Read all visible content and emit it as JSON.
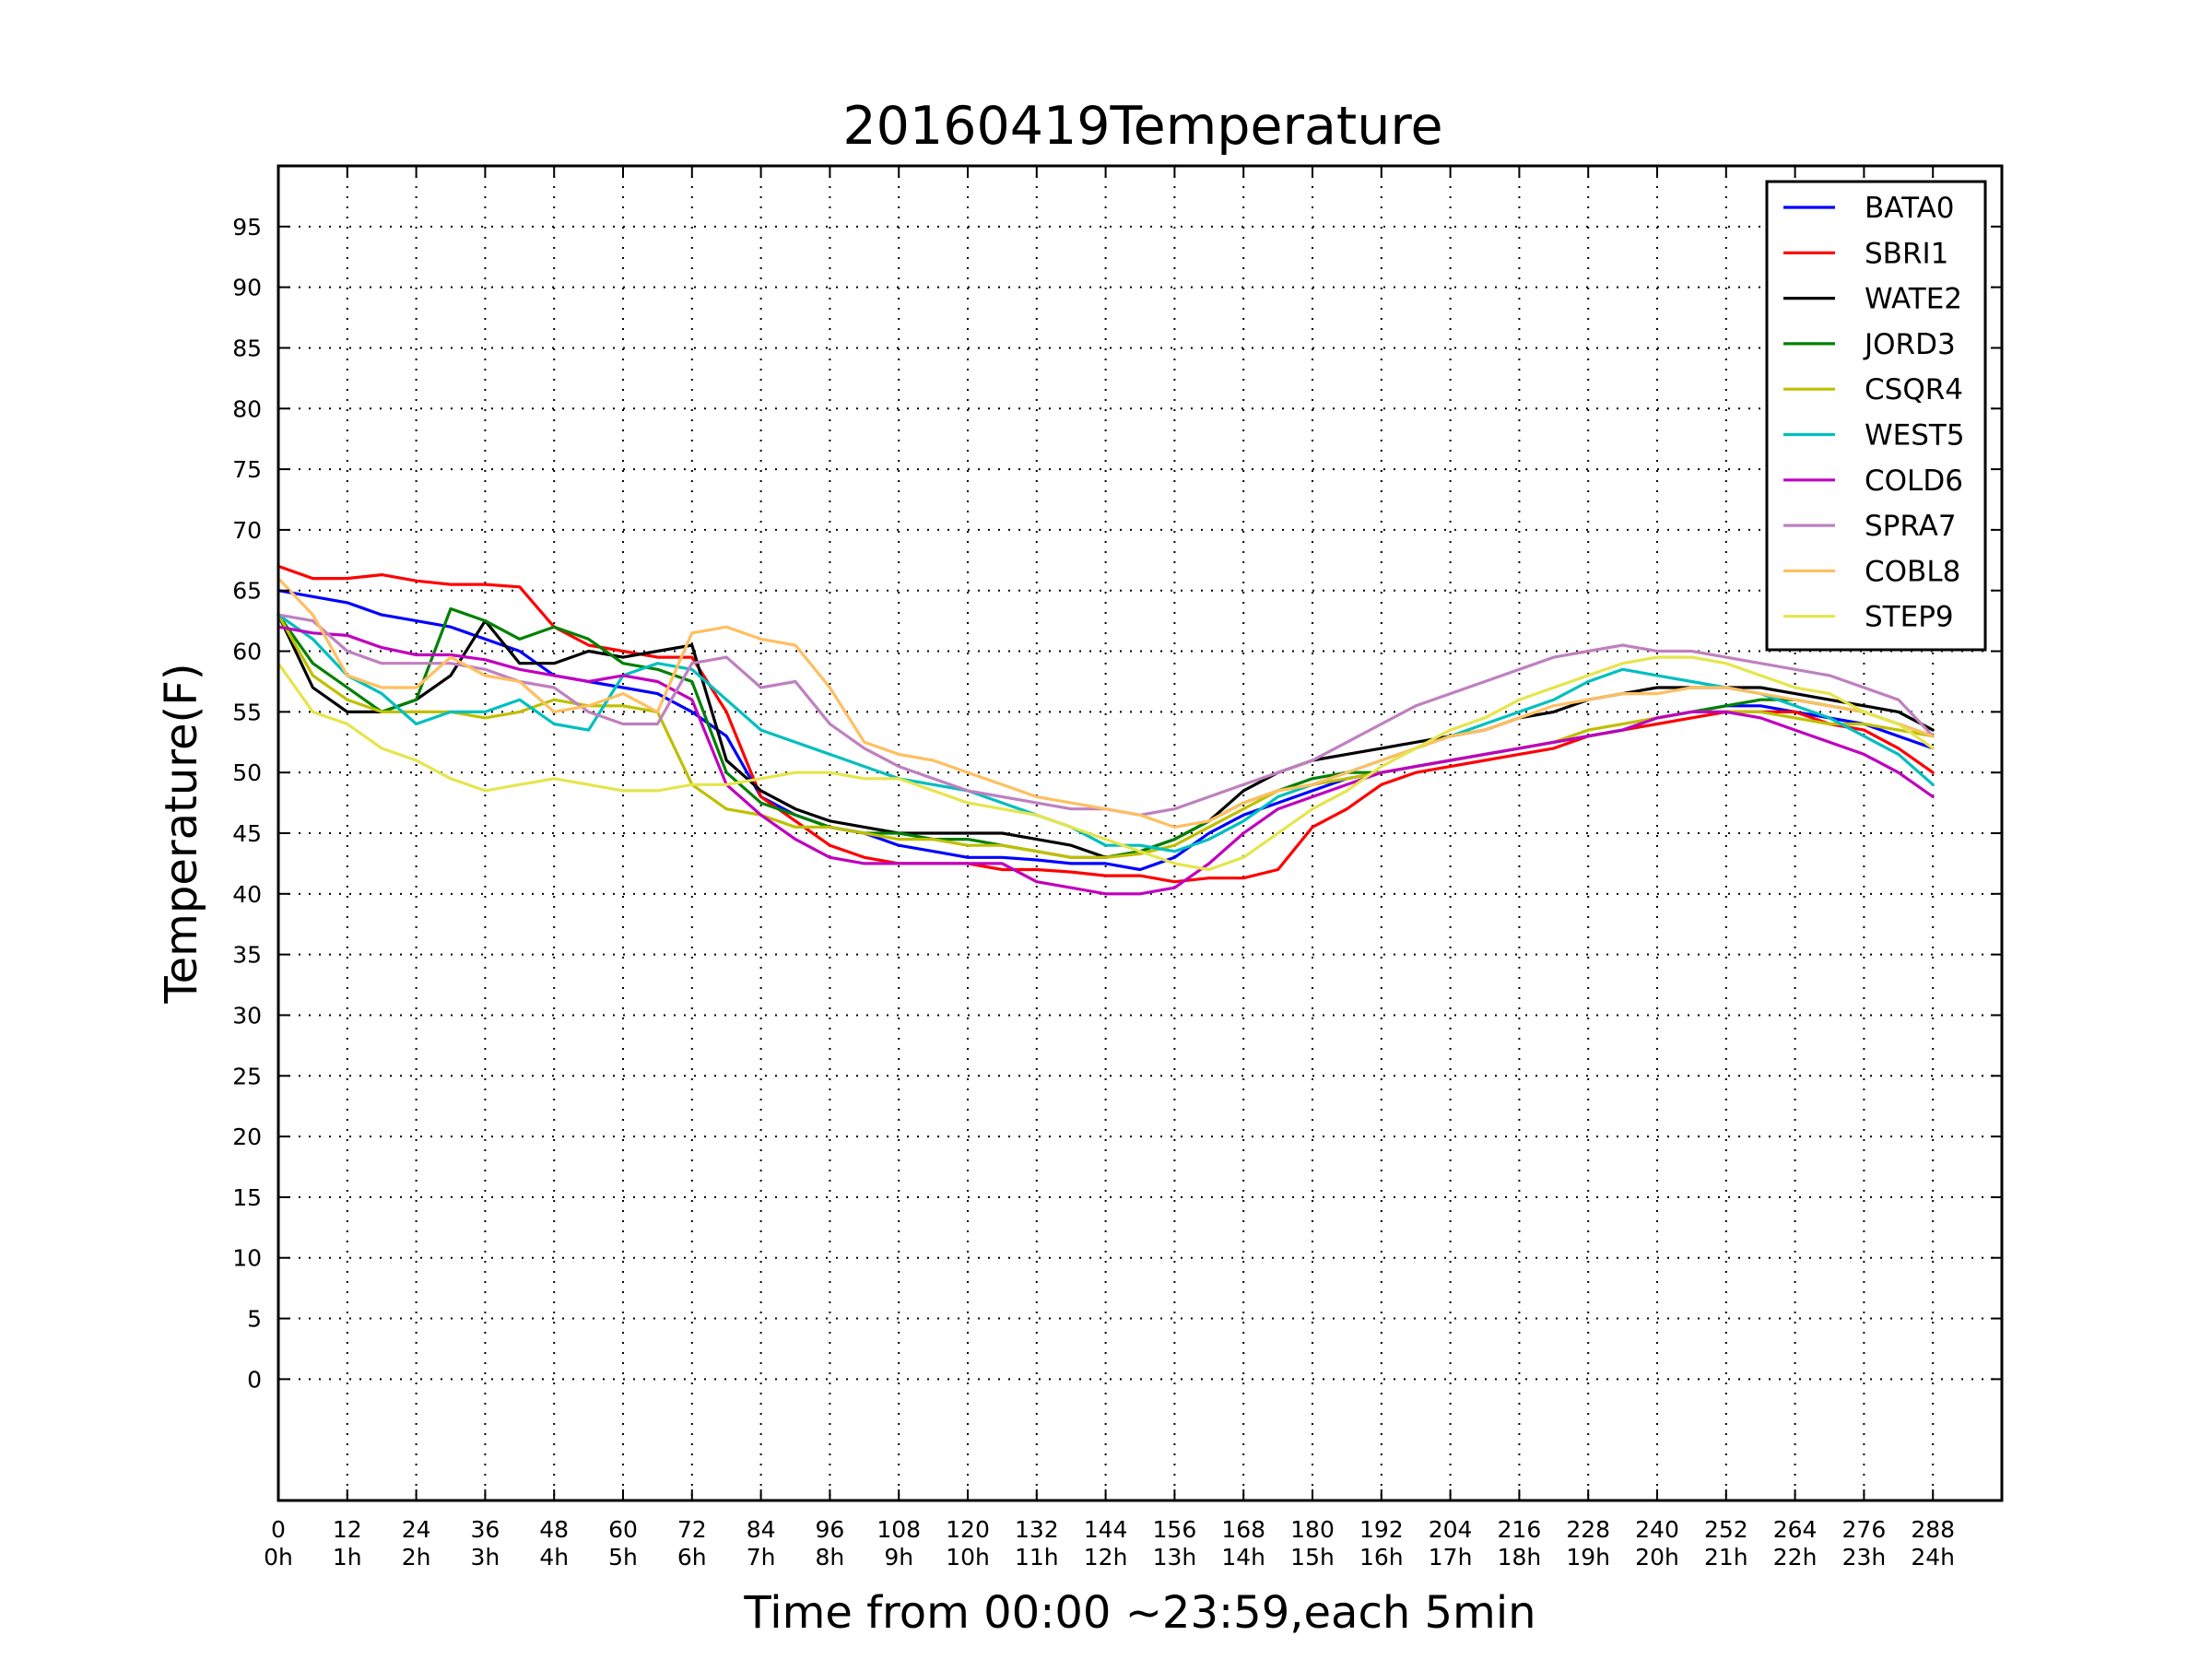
{
  "chart_data": {
    "type": "line",
    "title": "20160419Temperature",
    "xlabel": "Time from 00:00 ~23:59,each 5min",
    "ylabel": "Temperature(F)",
    "xlim": [
      0,
      300
    ],
    "ylim": [
      -10,
      100
    ],
    "grid": true,
    "legend_position": "top-right",
    "x_ticks": [
      0,
      12,
      24,
      36,
      48,
      60,
      72,
      84,
      96,
      108,
      120,
      132,
      144,
      156,
      168,
      180,
      192,
      204,
      216,
      228,
      240,
      252,
      264,
      276,
      288
    ],
    "x_tick_labels": [
      "0",
      "12",
      "24",
      "36",
      "48",
      "60",
      "72",
      "84",
      "96",
      "108",
      "120",
      "132",
      "144",
      "156",
      "168",
      "180",
      "192",
      "204",
      "216",
      "228",
      "240",
      "252",
      "264",
      "276",
      "288"
    ],
    "x_tick_sublabels": [
      "0h",
      "1h",
      "2h",
      "3h",
      "4h",
      "5h",
      "6h",
      "7h",
      "8h",
      "9h",
      "10h",
      "11h",
      "12h",
      "13h",
      "14h",
      "15h",
      "16h",
      "17h",
      "18h",
      "19h",
      "20h",
      "21h",
      "22h",
      "23h",
      "24h"
    ],
    "y_ticks": [
      0,
      5,
      10,
      15,
      20,
      25,
      30,
      35,
      40,
      45,
      50,
      55,
      60,
      65,
      70,
      75,
      80,
      85,
      90,
      95
    ],
    "y_tick_labels": [
      "0",
      "5",
      "10",
      "15",
      "20",
      "25",
      "30",
      "35",
      "40",
      "45",
      "50",
      "55",
      "60",
      "65",
      "70",
      "75",
      "80",
      "85",
      "90",
      "95"
    ],
    "x": [
      0,
      6,
      12,
      18,
      24,
      30,
      36,
      42,
      48,
      54,
      60,
      66,
      72,
      78,
      84,
      90,
      96,
      102,
      108,
      114,
      120,
      126,
      132,
      138,
      144,
      150,
      156,
      162,
      168,
      174,
      180,
      186,
      192,
      198,
      204,
      210,
      216,
      222,
      228,
      234,
      240,
      246,
      252,
      258,
      264,
      270,
      276,
      282,
      288
    ],
    "series": [
      {
        "name": "BATA0",
        "color": "#0000ff",
        "values": [
          65,
          64.5,
          64,
          63,
          62.5,
          62,
          61,
          60,
          58,
          57.5,
          57,
          56.5,
          55,
          53,
          48,
          46.5,
          45.5,
          45,
          44,
          43.5,
          43,
          43,
          42.8,
          42.5,
          42.5,
          42,
          43,
          45,
          46.5,
          47.5,
          48.5,
          49.5,
          50,
          50.5,
          51,
          51.5,
          52,
          52.5,
          53,
          53.5,
          54.5,
          55,
          55.5,
          55.5,
          55,
          54.5,
          54,
          53,
          52
        ]
      },
      {
        "name": "SBRI1",
        "color": "#ff0000",
        "values": [
          67,
          66,
          66,
          66.3,
          65.8,
          65.5,
          65.5,
          65.3,
          62,
          60.5,
          60,
          59.5,
          59.5,
          55,
          48,
          46,
          44,
          43,
          42.5,
          42.5,
          42.5,
          42,
          42,
          41.8,
          41.5,
          41.5,
          41,
          41.3,
          41.3,
          42,
          45.5,
          47,
          49,
          50,
          50.5,
          51,
          51.5,
          52,
          53,
          53.5,
          54,
          54.5,
          55,
          55,
          55,
          54,
          53.5,
          52,
          50
        ]
      },
      {
        "name": "WATE2",
        "color": "#000000",
        "values": [
          63,
          57,
          55,
          55,
          56,
          58,
          62.5,
          59,
          59,
          60,
          59.5,
          60,
          60.5,
          51,
          48.5,
          47,
          46,
          45.5,
          45,
          45,
          45,
          45,
          44.5,
          44,
          43,
          43.5,
          44.5,
          46,
          48.5,
          50,
          51,
          51.5,
          52,
          52.5,
          53,
          53.5,
          54.5,
          55,
          56,
          56.5,
          57,
          57,
          57,
          57,
          56.5,
          56,
          55.5,
          55,
          53.5
        ]
      },
      {
        "name": "JORD3",
        "color": "#008000",
        "values": [
          63,
          59,
          57,
          55,
          56,
          63.5,
          62.5,
          61,
          62,
          61,
          59,
          58.5,
          57.5,
          50,
          47.5,
          46.5,
          45.5,
          45,
          45,
          44.5,
          44.5,
          44,
          43.5,
          43,
          43,
          43.5,
          44.5,
          46,
          47.5,
          48.5,
          49.5,
          50,
          50,
          50.5,
          51,
          51.5,
          52,
          52.5,
          53,
          53.5,
          54.5,
          55,
          55.5,
          56,
          56,
          55.5,
          55,
          54,
          53
        ]
      },
      {
        "name": "CSQR4",
        "color": "#bfbf00",
        "values": [
          63,
          58,
          56,
          55,
          55,
          55,
          54.5,
          55,
          56,
          55.5,
          55.5,
          55,
          49,
          47,
          46.5,
          45.5,
          45.5,
          45,
          44.5,
          44.5,
          44,
          44,
          43.5,
          43,
          43,
          43.3,
          44,
          45.5,
          47,
          48.5,
          49,
          49.5,
          50,
          50.5,
          51,
          51.5,
          52,
          52.5,
          53.5,
          54,
          54.5,
          55,
          55,
          55,
          54.5,
          54,
          54,
          53.5,
          53
        ]
      },
      {
        "name": "WEST5",
        "color": "#00bfbf",
        "values": [
          63,
          61,
          58,
          56.5,
          54,
          55,
          55,
          56,
          54,
          53.5,
          58,
          59,
          58.5,
          56,
          53.5,
          52.5,
          51.5,
          50.5,
          49.5,
          49,
          48.5,
          47.5,
          46.5,
          45.5,
          44,
          44,
          43.5,
          44.5,
          46,
          48,
          49,
          50,
          51,
          52,
          53,
          54,
          55,
          56,
          57.5,
          58.5,
          58,
          57.5,
          57,
          56.5,
          55.5,
          54.5,
          53,
          51.5,
          49
        ]
      },
      {
        "name": "COLD6",
        "color": "#bf00bf",
        "values": [
          62,
          61.5,
          61.3,
          60.3,
          59.7,
          59.7,
          59.3,
          58.5,
          58,
          57.5,
          58,
          57.5,
          56,
          49,
          46.5,
          44.5,
          43,
          42.5,
          42.5,
          42.5,
          42.5,
          42.5,
          41,
          40.5,
          40,
          40,
          40.5,
          42.5,
          45,
          47,
          48,
          49,
          50,
          50.5,
          51,
          51.5,
          52,
          52.5,
          53,
          53.5,
          54.5,
          55,
          55,
          54.5,
          53.5,
          52.5,
          51.5,
          50,
          48
        ]
      },
      {
        "name": "SPRA7",
        "color": "#bf80bf",
        "values": [
          63,
          62.5,
          60,
          59,
          59,
          59,
          58.5,
          57.5,
          57,
          55,
          54,
          54,
          59,
          59.5,
          57,
          57.5,
          54,
          52,
          50.5,
          49.5,
          48.5,
          48,
          47.5,
          47,
          47,
          46.5,
          47,
          48,
          49,
          50,
          51,
          52.5,
          54,
          55.5,
          56.5,
          57.5,
          58.5,
          59.5,
          60,
          60.5,
          60,
          60,
          59.5,
          59,
          58.5,
          58,
          57,
          56,
          53
        ]
      },
      {
        "name": "COBL8",
        "color": "#ffbf60",
        "values": [
          66,
          63,
          58,
          57,
          57,
          59.5,
          58,
          57.5,
          55,
          55.5,
          56.5,
          55,
          61.5,
          62,
          61,
          60.5,
          57,
          52.5,
          51.5,
          51,
          50,
          49,
          48,
          47.5,
          47,
          46.5,
          45.5,
          46,
          47.5,
          48.5,
          49,
          50,
          51,
          52,
          53,
          53.5,
          54.5,
          55.5,
          56,
          56.5,
          56.5,
          57,
          57,
          56.5,
          56,
          55.5,
          55,
          54,
          53
        ]
      },
      {
        "name": "STEP9",
        "color": "#e5e54c",
        "values": [
          59,
          55,
          54,
          52,
          51,
          49.5,
          48.5,
          49,
          49.5,
          49,
          48.5,
          48.5,
          49,
          49,
          49.5,
          50,
          50,
          49.5,
          49.5,
          48.5,
          47.5,
          47,
          46.5,
          45.5,
          44.5,
          43.5,
          42.5,
          42,
          43,
          45,
          47,
          48.5,
          50.5,
          52,
          53.5,
          54.5,
          56,
          57,
          58,
          59,
          59.5,
          59.5,
          59,
          58,
          57,
          56.5,
          55,
          54,
          52
        ]
      }
    ]
  }
}
